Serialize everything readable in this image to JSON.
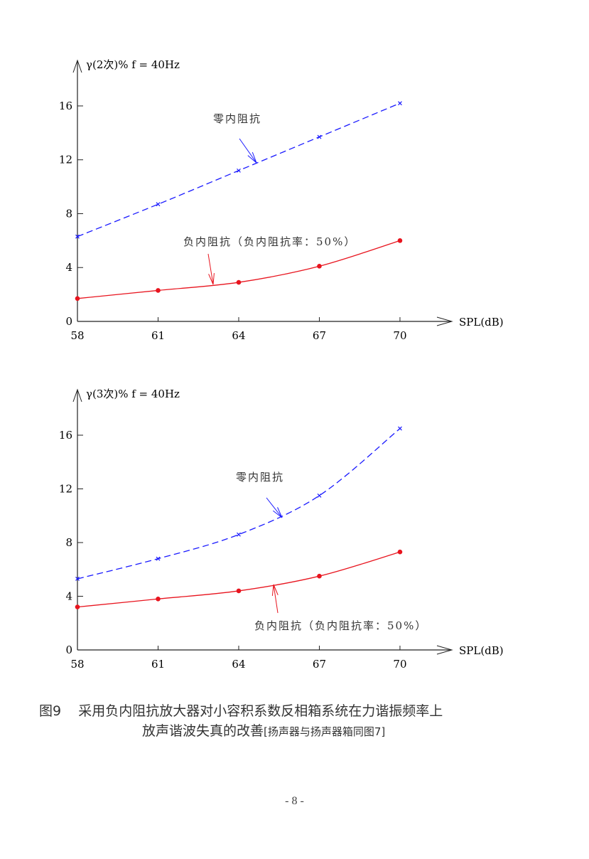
{
  "chart_data": [
    {
      "type": "line",
      "ylabel": "γ(2次)%  f = 40Hz",
      "xlabel": "SPL(dB)",
      "x": [
        58,
        61,
        64,
        67,
        70
      ],
      "xticks": [
        "58",
        "61",
        "64",
        "67",
        "70"
      ],
      "yticks": [
        "0",
        "4",
        "8",
        "12",
        "16"
      ],
      "xlim": [
        58,
        70
      ],
      "ylim": [
        0,
        16
      ],
      "grid": false,
      "series": [
        {
          "name": "零内阻抗",
          "values": [
            6.3,
            8.7,
            11.2,
            13.7,
            16.2
          ],
          "color": "#1a1aff",
          "style": "dashed",
          "marker": "x"
        },
        {
          "name": "负内阻抗（负内阻抗率：50%）",
          "values": [
            1.7,
            2.3,
            2.9,
            4.1,
            6.0
          ],
          "color": "#e8141e",
          "style": "solid",
          "marker": "dot"
        }
      ]
    },
    {
      "type": "line",
      "ylabel": "γ(3次)%  f = 40Hz",
      "xlabel": "SPL(dB)",
      "x": [
        58,
        61,
        64,
        67,
        70
      ],
      "xticks": [
        "58",
        "61",
        "64",
        "67",
        "70"
      ],
      "yticks": [
        "0",
        "4",
        "8",
        "12",
        "16"
      ],
      "xlim": [
        58,
        70
      ],
      "ylim": [
        0,
        16
      ],
      "grid": false,
      "series": [
        {
          "name": "零内阻抗",
          "values": [
            5.3,
            6.8,
            8.6,
            11.5,
            16.5
          ],
          "color": "#1a1aff",
          "style": "dashed",
          "marker": "x"
        },
        {
          "name": "负内阻抗（负内阻抗率：50%）",
          "values": [
            3.2,
            3.8,
            4.4,
            5.5,
            7.3
          ],
          "color": "#e8141e",
          "style": "solid",
          "marker": "dot"
        }
      ]
    }
  ],
  "caption": {
    "figure_label": "图9",
    "line1": "采用负内阻抗放大器对小容积系数反相箱系统在力谐振频率上",
    "line2": "放声谐波失真的改善",
    "reference": "[扬声器与扬声器箱同图7]"
  },
  "page_number": "- 8 -"
}
